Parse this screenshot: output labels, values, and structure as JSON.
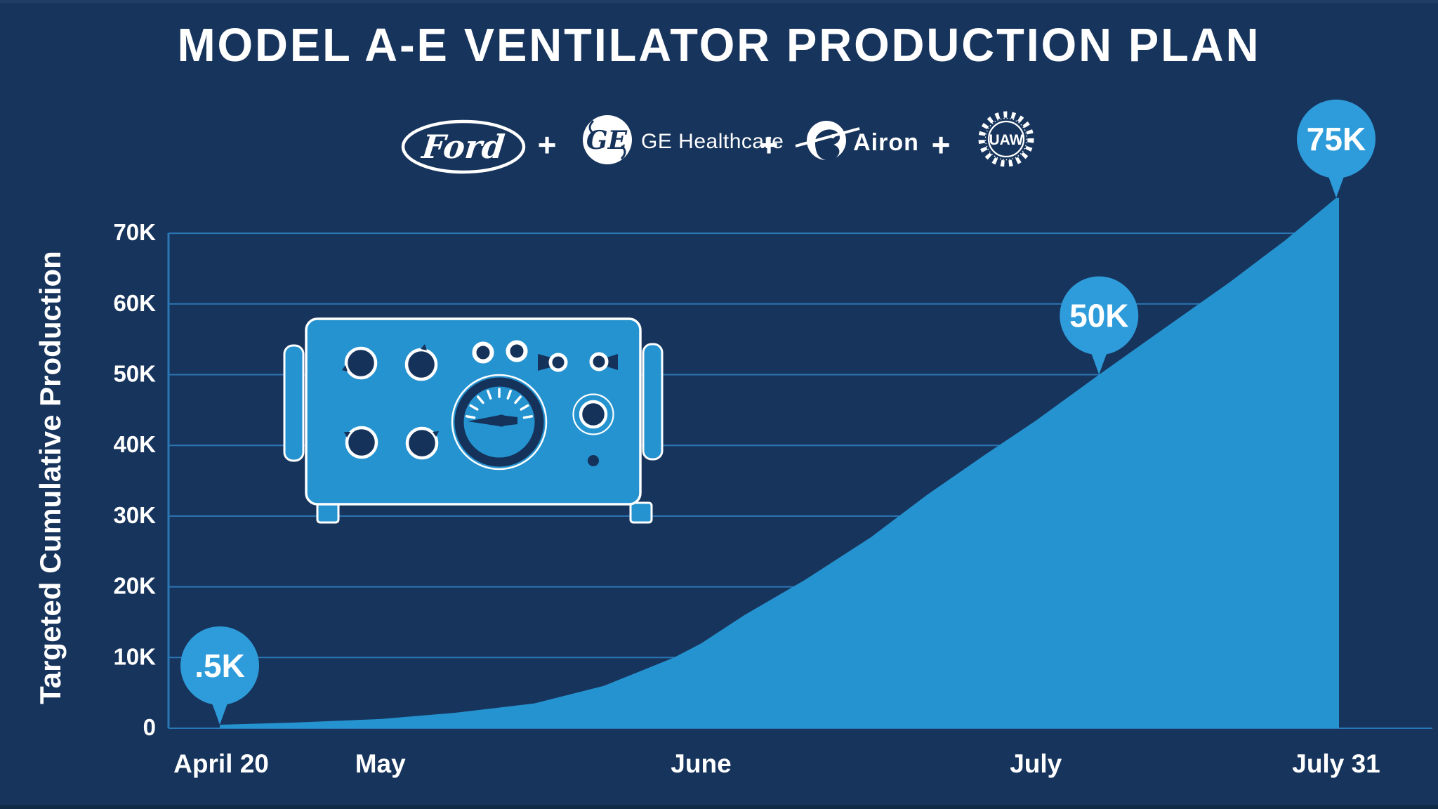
{
  "title": "MODEL A-E VENTILATOR PRODUCTION PLAN",
  "partners": {
    "plus": "+",
    "items": [
      {
        "name": "Ford",
        "wordmark": "Ford"
      },
      {
        "name": "GE Healthcare",
        "monogram": "GE",
        "wordmark": "GE Healthcare"
      },
      {
        "name": "Airon",
        "wordmark": "Airon"
      },
      {
        "name": "UAW",
        "wordmark": "UAW"
      }
    ]
  },
  "chart_data": {
    "type": "area",
    "title": "MODEL A-E VENTILATOR PRODUCTION PLAN",
    "xlabel": "",
    "ylabel": "Targeted Cumulative Production",
    "values_unit": "thousands of ventilators",
    "axis_max_k": 70,
    "grid": true,
    "legend": false,
    "y_ticks": [
      "0",
      "10K",
      "20K",
      "30K",
      "40K",
      "50K",
      "60K",
      "70K"
    ],
    "x_ticks": [
      {
        "label": "April 20",
        "f": 0.045
      },
      {
        "label": "May",
        "f": 0.181
      },
      {
        "label": "June",
        "f": 0.455
      },
      {
        "label": "July",
        "f": 0.741
      },
      {
        "label": "July 31",
        "f": 0.9976
      }
    ],
    "series": [
      {
        "name": "Targeted cumulative production",
        "points": [
          {
            "f": 0.0438,
            "v": 0.5,
            "date": "April 20"
          },
          {
            "f": 0.108,
            "v": 0.8
          },
          {
            "f": 0.181,
            "v": 1.3,
            "date": "May 1"
          },
          {
            "f": 0.246,
            "v": 2.2
          },
          {
            "f": 0.312,
            "v": 3.5
          },
          {
            "f": 0.372,
            "v": 6
          },
          {
            "f": 0.432,
            "v": 10
          },
          {
            "f": 0.455,
            "v": 12,
            "date": "June 1"
          },
          {
            "f": 0.492,
            "v": 16
          },
          {
            "f": 0.544,
            "v": 21
          },
          {
            "f": 0.6,
            "v": 27
          },
          {
            "f": 0.648,
            "v": 33
          },
          {
            "f": 0.696,
            "v": 38.5
          },
          {
            "f": 0.741,
            "v": 43.5,
            "date": "July 1"
          },
          {
            "f": 0.795,
            "v": 50
          },
          {
            "f": 0.846,
            "v": 56
          },
          {
            "f": 0.906,
            "v": 63
          },
          {
            "f": 0.954,
            "v": 69
          },
          {
            "f": 0.9976,
            "v": 75,
            "date": "July 31"
          }
        ]
      }
    ],
    "callouts": [
      {
        "label": ".5K",
        "f": 0.0438,
        "v": 0.5
      },
      {
        "label": "50K",
        "f": 0.795,
        "v": 50
      },
      {
        "label": "75K",
        "f": 0.9976,
        "v": 75
      }
    ],
    "colors": {
      "background": "#17345C",
      "area_fill": "#2493D0",
      "callout_fill": "#2E9CDA",
      "gridline": "#2B76B4",
      "text": "#FFFFFF",
      "illustration_dark": "#15325A"
    }
  }
}
